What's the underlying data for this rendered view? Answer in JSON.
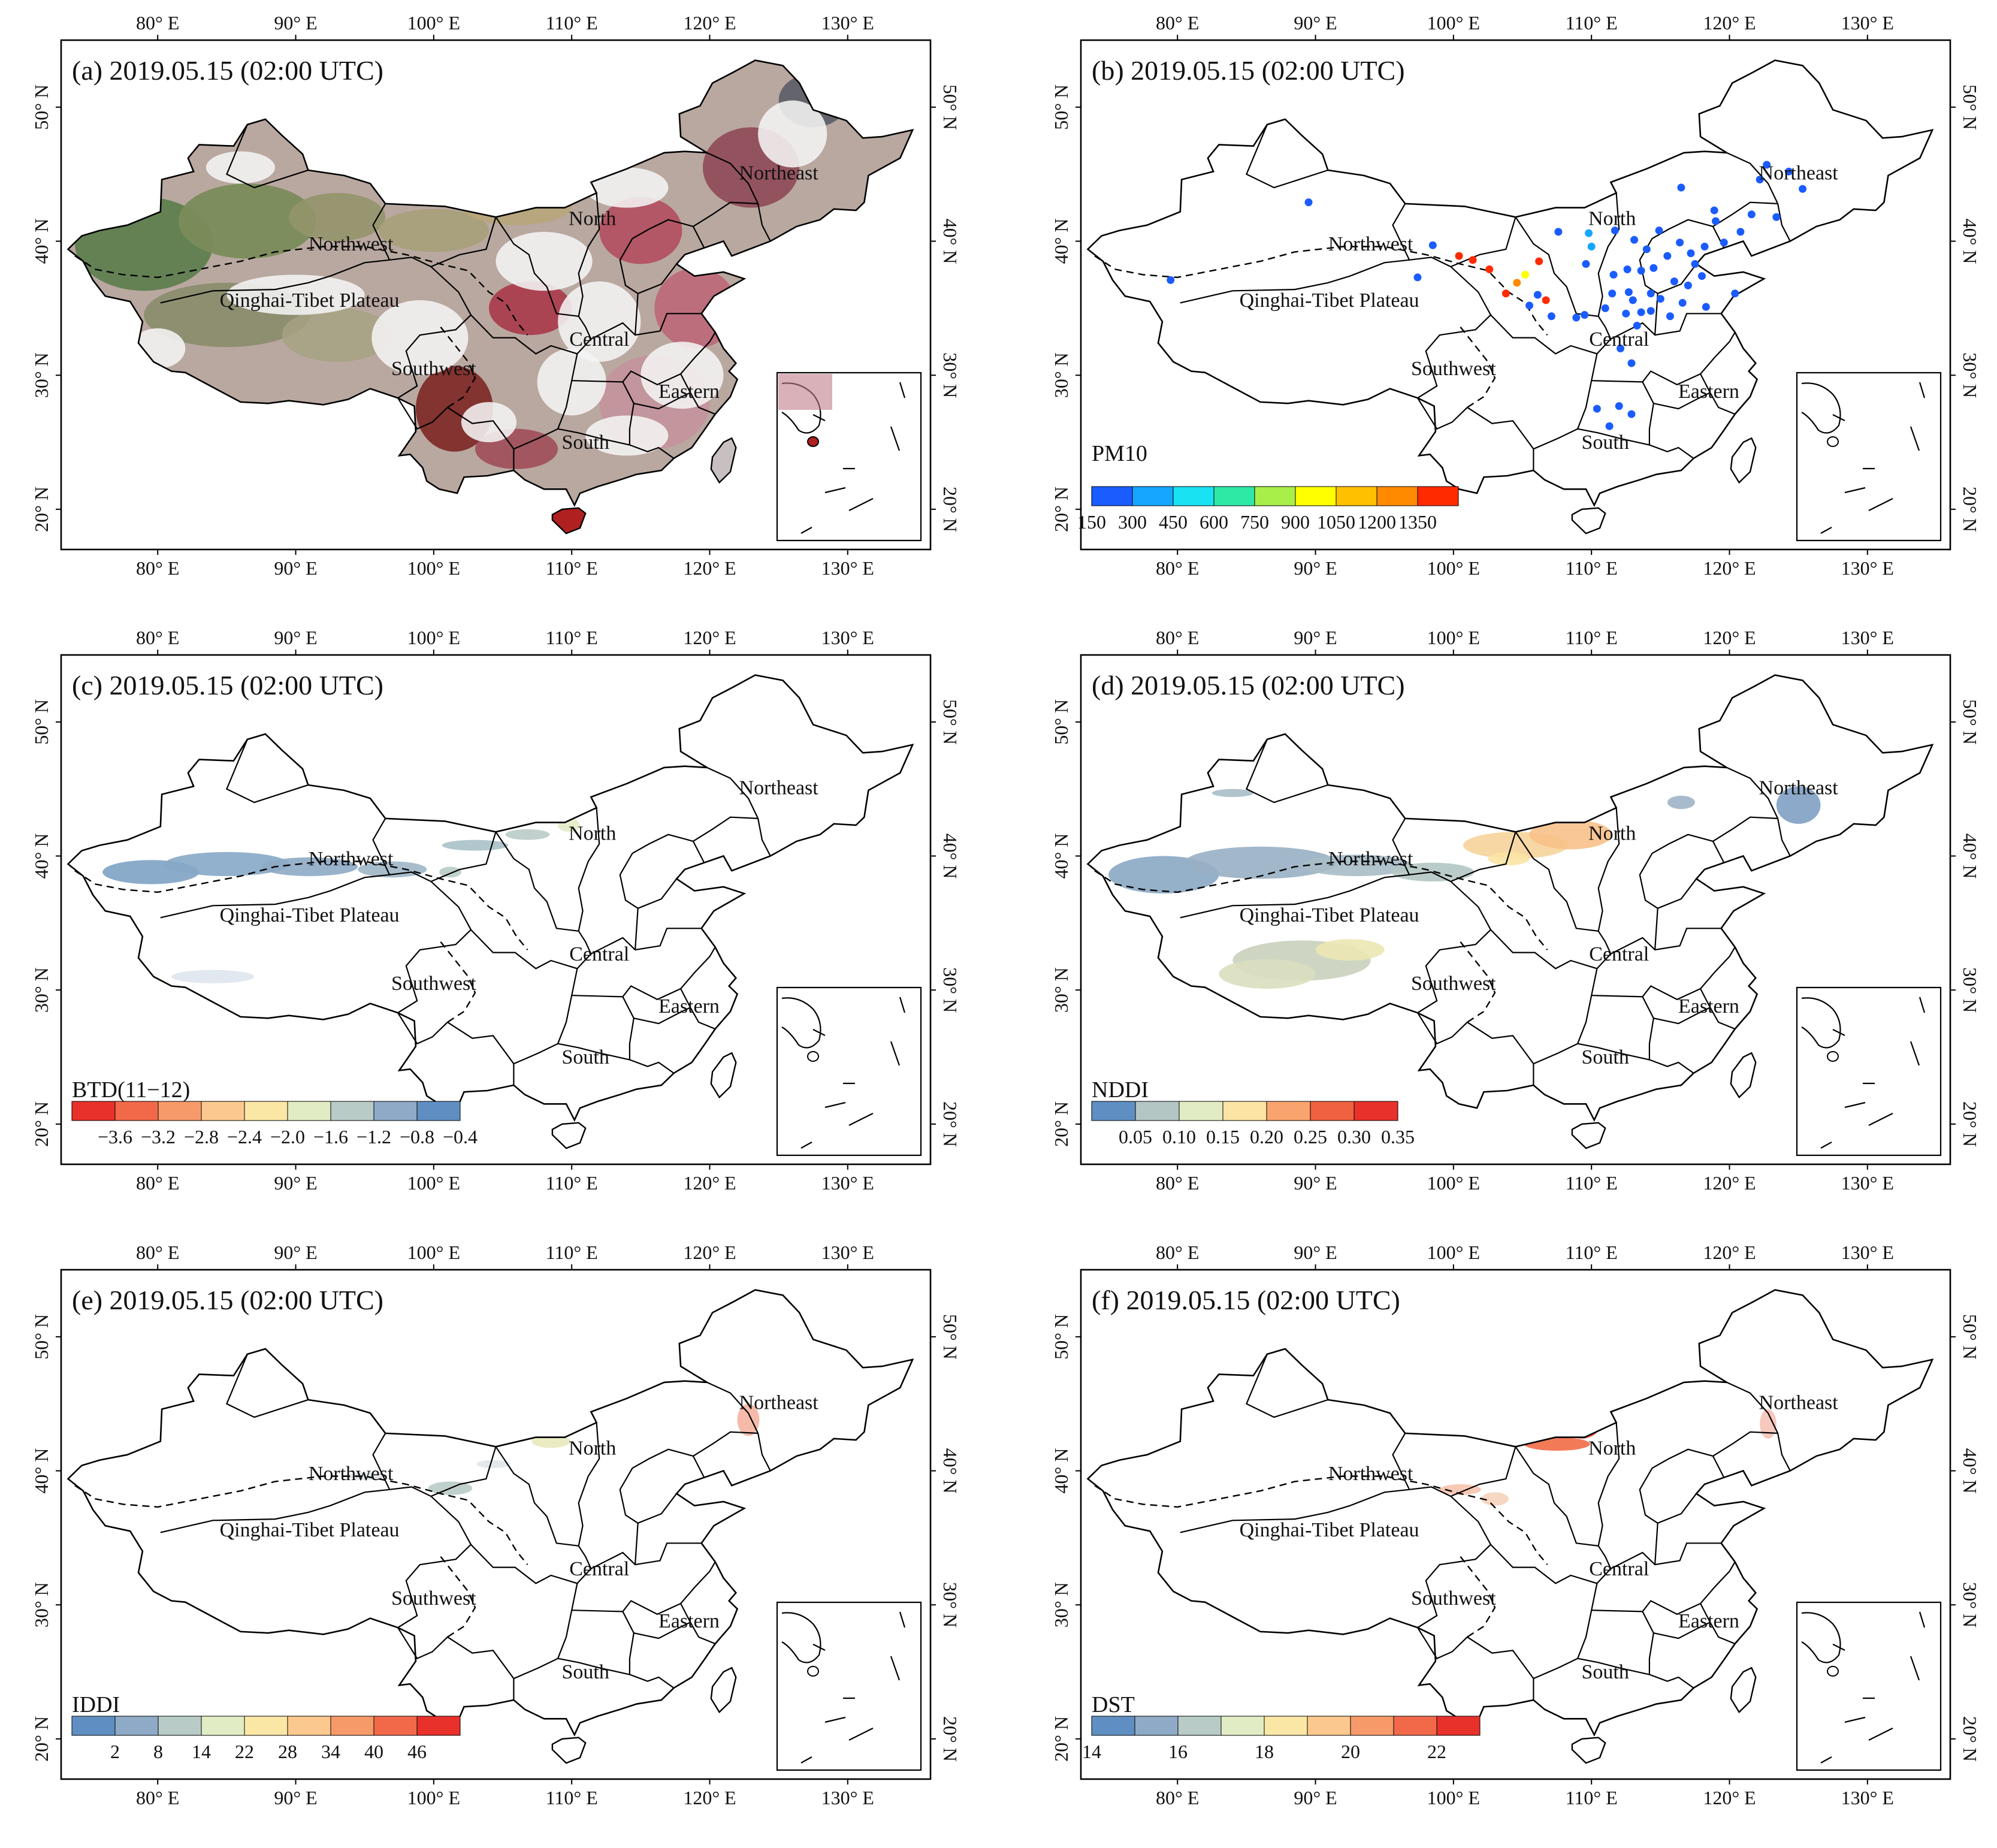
{
  "figure": {
    "panels": [
      {
        "id": "a",
        "title": "(a) 2019.05.15 (02:00 UTC)",
        "layer": "true-color",
        "legend": null
      },
      {
        "id": "b",
        "title": "(b) 2019.05.15 (02:00 UTC)",
        "layer": "stations",
        "legend": {
          "title": "PM10",
          "ticks": [
            "150",
            "300",
            "450",
            "600",
            "750",
            "900",
            "1050",
            "1200",
            "1350"
          ],
          "colors": [
            "#1a5cff",
            "#16a6ff",
            "#19e3f2",
            "#2ee8a6",
            "#a8ef4a",
            "#ffff00",
            "#ffc000",
            "#ff8a00",
            "#ff2a00"
          ]
        }
      },
      {
        "id": "c",
        "title": "(c) 2019.05.15 (02:00 UTC)",
        "layer": "btd",
        "legend": {
          "title": "BTD(11−12)",
          "ticks": [
            "−3.6",
            "−3.2",
            "−2.8",
            "−2.4",
            "−2.0",
            "−1.6",
            "−1.2",
            "−0.8",
            "−0.4"
          ],
          "colors": [
            "#e8312a",
            "#f2694a",
            "#f79a6a",
            "#fbc98f",
            "#fbe7a5",
            "#e2ecc4",
            "#b9cbc6",
            "#8eaac6",
            "#5f8fc2"
          ]
        }
      },
      {
        "id": "d",
        "title": "(d) 2019.05.15 (02:00 UTC)",
        "layer": "nddi",
        "legend": {
          "title": "NDDI",
          "ticks": [
            "0.05",
            "0.10",
            "0.15",
            "0.20",
            "0.25",
            "0.30",
            "0.35"
          ],
          "colors": [
            "#5f8fc2",
            "#b3c6c3",
            "#e2ecc4",
            "#fbe4a4",
            "#f9a46e",
            "#f0613f",
            "#e8312a"
          ]
        }
      },
      {
        "id": "e",
        "title": "(e) 2019.05.15 (02:00 UTC)",
        "layer": "iddi",
        "legend": {
          "title": "IDDI",
          "ticks": [
            "2",
            "8",
            "14",
            "22",
            "28",
            "34",
            "40",
            "46"
          ],
          "colors": [
            "#5f8fc2",
            "#8eaac6",
            "#b9cbc6",
            "#e2ecc4",
            "#fbe7a5",
            "#fbc98f",
            "#f79a6a",
            "#f2694a",
            "#e8312a"
          ]
        }
      },
      {
        "id": "f",
        "title": "(f) 2019.05.15 (02:00 UTC)",
        "layer": "dst",
        "legend": {
          "title": "DST",
          "ticks": [
            "14",
            "16",
            "18",
            "20",
            "22"
          ],
          "colors": [
            "#5f8fc2",
            "#8eaac6",
            "#b9cbc6",
            "#e2ecc4",
            "#fbe7a5",
            "#fbc98f",
            "#f79a6a",
            "#f2694a",
            "#e8312a"
          ]
        }
      }
    ],
    "lon_ticks": [
      "80° E",
      "90° E",
      "100° E",
      "110° E",
      "120° E",
      "130° E"
    ],
    "lat_ticks": [
      "20° N",
      "30° N",
      "40° N",
      "50° N"
    ],
    "lon_values": [
      80,
      90,
      100,
      110,
      120,
      130
    ],
    "lat_values": [
      20,
      30,
      40,
      50
    ],
    "extent": {
      "lon": [
        73,
        136
      ],
      "lat": [
        17,
        55
      ]
    },
    "regions": [
      {
        "name": "Northeast",
        "lon": 125.0,
        "lat": 44.6
      },
      {
        "name": "North",
        "lon": 111.5,
        "lat": 41.2
      },
      {
        "name": "Northwest",
        "lon": 94.0,
        "lat": 39.3
      },
      {
        "name": "Qinghai-Tibet Plateau",
        "lon": 91.0,
        "lat": 35.1
      },
      {
        "name": "Southwest",
        "lon": 100.0,
        "lat": 30.0
      },
      {
        "name": "Central",
        "lon": 112.0,
        "lat": 32.2
      },
      {
        "name": "Eastern",
        "lon": 118.5,
        "lat": 28.3
      },
      {
        "name": "South",
        "lon": 111.0,
        "lat": 24.5
      }
    ],
    "stations_pm10": [
      {
        "lon": 89.5,
        "lat": 42.9,
        "pm10": 200
      },
      {
        "lon": 79.5,
        "lat": 37.1,
        "pm10": 200
      },
      {
        "lon": 98.5,
        "lat": 39.7,
        "pm10": 200
      },
      {
        "lon": 97.4,
        "lat": 37.3,
        "pm10": 200
      },
      {
        "lon": 100.4,
        "lat": 38.9,
        "pm10": 1350
      },
      {
        "lon": 101.4,
        "lat": 38.6,
        "pm10": 1350
      },
      {
        "lon": 102.6,
        "lat": 37.9,
        "pm10": 1350
      },
      {
        "lon": 103.8,
        "lat": 36.1,
        "pm10": 1350
      },
      {
        "lon": 104.6,
        "lat": 36.9,
        "pm10": 1300
      },
      {
        "lon": 105.2,
        "lat": 37.5,
        "pm10": 1000
      },
      {
        "lon": 106.2,
        "lat": 38.5,
        "pm10": 1350
      },
      {
        "lon": 106.7,
        "lat": 35.6,
        "pm10": 1350
      },
      {
        "lon": 106.1,
        "lat": 36.0,
        "pm10": 200
      },
      {
        "lon": 105.5,
        "lat": 35.2,
        "pm10": 200
      },
      {
        "lon": 107.6,
        "lat": 40.7,
        "pm10": 200
      },
      {
        "lon": 109.8,
        "lat": 40.6,
        "pm10": 350
      },
      {
        "lon": 110.0,
        "lat": 39.6,
        "pm10": 300
      },
      {
        "lon": 109.6,
        "lat": 38.3,
        "pm10": 200
      },
      {
        "lon": 111.7,
        "lat": 40.8,
        "pm10": 200
      },
      {
        "lon": 113.1,
        "lat": 40.1,
        "pm10": 200
      },
      {
        "lon": 114.9,
        "lat": 40.8,
        "pm10": 200
      },
      {
        "lon": 116.4,
        "lat": 39.9,
        "pm10": 200
      },
      {
        "lon": 117.2,
        "lat": 39.1,
        "pm10": 200
      },
      {
        "lon": 118.2,
        "lat": 39.6,
        "pm10": 200
      },
      {
        "lon": 119.6,
        "lat": 39.9,
        "pm10": 200
      },
      {
        "lon": 115.5,
        "lat": 38.9,
        "pm10": 200
      },
      {
        "lon": 114.5,
        "lat": 38.0,
        "pm10": 200
      },
      {
        "lon": 112.6,
        "lat": 37.9,
        "pm10": 200
      },
      {
        "lon": 113.6,
        "lat": 37.8,
        "pm10": 200
      },
      {
        "lon": 112.7,
        "lat": 36.2,
        "pm10": 200
      },
      {
        "lon": 111.5,
        "lat": 36.1,
        "pm10": 200
      },
      {
        "lon": 113.6,
        "lat": 34.7,
        "pm10": 200
      },
      {
        "lon": 114.3,
        "lat": 36.1,
        "pm10": 200
      },
      {
        "lon": 115.0,
        "lat": 35.7,
        "pm10": 200
      },
      {
        "lon": 117.0,
        "lat": 36.7,
        "pm10": 200
      },
      {
        "lon": 118.0,
        "lat": 37.4,
        "pm10": 200
      },
      {
        "lon": 120.4,
        "lat": 36.1,
        "pm10": 200
      },
      {
        "lon": 118.3,
        "lat": 35.1,
        "pm10": 200
      },
      {
        "lon": 116.6,
        "lat": 35.4,
        "pm10": 200
      },
      {
        "lon": 112.5,
        "lat": 34.6,
        "pm10": 200
      },
      {
        "lon": 108.9,
        "lat": 34.3,
        "pm10": 200
      },
      {
        "lon": 109.5,
        "lat": 34.5,
        "pm10": 200
      },
      {
        "lon": 107.1,
        "lat": 34.4,
        "pm10": 200
      },
      {
        "lon": 111.0,
        "lat": 35.0,
        "pm10": 200
      },
      {
        "lon": 112.1,
        "lat": 32.0,
        "pm10": 200
      },
      {
        "lon": 112.9,
        "lat": 30.9,
        "pm10": 200
      },
      {
        "lon": 113.3,
        "lat": 33.7,
        "pm10": 200
      },
      {
        "lon": 114.3,
        "lat": 34.8,
        "pm10": 200
      },
      {
        "lon": 115.7,
        "lat": 34.4,
        "pm10": 200
      },
      {
        "lon": 110.4,
        "lat": 27.5,
        "pm10": 200
      },
      {
        "lon": 112.0,
        "lat": 27.7,
        "pm10": 200
      },
      {
        "lon": 112.9,
        "lat": 27.1,
        "pm10": 200
      },
      {
        "lon": 111.3,
        "lat": 26.2,
        "pm10": 200
      },
      {
        "lon": 122.2,
        "lat": 44.6,
        "pm10": 200
      },
      {
        "lon": 124.3,
        "lat": 45.2,
        "pm10": 200
      },
      {
        "lon": 125.3,
        "lat": 43.9,
        "pm10": 200
      },
      {
        "lon": 123.4,
        "lat": 41.8,
        "pm10": 200
      },
      {
        "lon": 121.6,
        "lat": 42.0,
        "pm10": 200
      },
      {
        "lon": 120.8,
        "lat": 40.7,
        "pm10": 200
      },
      {
        "lon": 119.0,
        "lat": 41.5,
        "pm10": 200
      },
      {
        "lon": 118.9,
        "lat": 42.3,
        "pm10": 200
      },
      {
        "lon": 116.5,
        "lat": 44.0,
        "pm10": 200
      },
      {
        "lon": 122.7,
        "lat": 45.7,
        "pm10": 200
      },
      {
        "lon": 114.0,
        "lat": 39.4,
        "pm10": 200
      },
      {
        "lon": 117.5,
        "lat": 38.3,
        "pm10": 200
      },
      {
        "lon": 116.0,
        "lat": 37.0,
        "pm10": 200
      },
      {
        "lon": 113.0,
        "lat": 35.6,
        "pm10": 200
      },
      {
        "lon": 111.6,
        "lat": 37.5,
        "pm10": 200
      }
    ]
  }
}
